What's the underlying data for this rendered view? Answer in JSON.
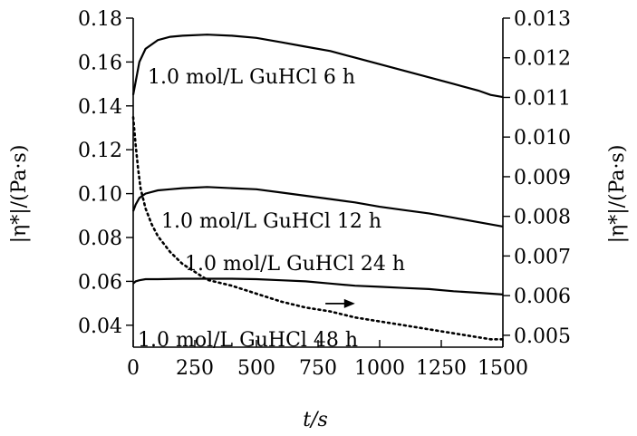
{
  "chart_data": {
    "type": "line",
    "xlabel": "t/s",
    "ylabel": "|η*|/(Pa·s)",
    "y2label": "|η*|/(Pa·s)",
    "xlim": [
      0,
      1500
    ],
    "ylim": [
      0.03,
      0.18
    ],
    "y2lim": [
      0.0047,
      0.013
    ],
    "x_ticks": [
      "0",
      "250",
      "500",
      "750",
      "1000",
      "1250",
      "1500"
    ],
    "y_ticks": [
      "0.04",
      "0.06",
      "0.08",
      "0.10",
      "0.12",
      "0.14",
      "0.16",
      "0.18"
    ],
    "y2_ticks": [
      "0.005",
      "0.006",
      "0.007",
      "0.008",
      "0.009",
      "0.010",
      "0.011",
      "0.012",
      "0.013"
    ],
    "series": [
      {
        "name": "1.0 mol/L GuHCl 6 h",
        "axis": "left",
        "style": "solid",
        "x": [
          0,
          10,
          25,
          50,
          100,
          150,
          200,
          300,
          400,
          500,
          600,
          700,
          800,
          900,
          1000,
          1100,
          1200,
          1300,
          1400,
          1450,
          1500
        ],
        "y": [
          0.145,
          0.151,
          0.16,
          0.166,
          0.17,
          0.1715,
          0.172,
          0.1725,
          0.172,
          0.171,
          0.169,
          0.167,
          0.165,
          0.162,
          0.159,
          0.156,
          0.153,
          0.15,
          0.147,
          0.145,
          0.144
        ]
      },
      {
        "name": "1.0 mol/L GuHCl 12 h",
        "axis": "left",
        "style": "solid",
        "x": [
          0,
          10,
          25,
          50,
          100,
          150,
          200,
          300,
          400,
          500,
          600,
          700,
          800,
          900,
          1000,
          1100,
          1200,
          1300,
          1400,
          1500
        ],
        "y": [
          0.092,
          0.095,
          0.098,
          0.1,
          0.1015,
          0.102,
          0.1025,
          0.103,
          0.1025,
          0.102,
          0.1005,
          0.099,
          0.0975,
          0.096,
          0.094,
          0.0925,
          0.091,
          0.089,
          0.087,
          0.085
        ]
      },
      {
        "name": "1.0 mol/L GuHCl 24 h",
        "axis": "left",
        "style": "solid",
        "x": [
          0,
          10,
          25,
          50,
          100,
          200,
          300,
          400,
          500,
          600,
          700,
          800,
          900,
          1000,
          1100,
          1200,
          1300,
          1400,
          1500
        ],
        "y": [
          0.059,
          0.06,
          0.0605,
          0.061,
          0.061,
          0.0612,
          0.0612,
          0.0612,
          0.061,
          0.0605,
          0.06,
          0.059,
          0.058,
          0.0575,
          0.057,
          0.0565,
          0.0555,
          0.0548,
          0.054
        ]
      },
      {
        "name": "1.0 mol/L GuHCl 48 h",
        "axis": "right",
        "style": "dotted",
        "x": [
          0,
          10,
          20,
          30,
          50,
          75,
          100,
          150,
          200,
          250,
          300,
          400,
          500,
          600,
          700,
          800,
          900,
          1000,
          1100,
          1200,
          1300,
          1400,
          1450,
          1500
        ],
        "y": [
          0.0105,
          0.0098,
          0.0092,
          0.0087,
          0.0082,
          0.0078,
          0.0075,
          0.0071,
          0.0068,
          0.0066,
          0.0064,
          0.00625,
          0.00605,
          0.00585,
          0.0057,
          0.0056,
          0.00545,
          0.00535,
          0.00525,
          0.00515,
          0.00505,
          0.00495,
          0.0049,
          0.0049
        ]
      }
    ],
    "annotations": [
      {
        "type": "arrow",
        "direction": "right",
        "refers_to": "1.0 mol/L GuHCl 48 h",
        "x_from": 780,
        "x_to": 900,
        "y2": 0.0058
      }
    ],
    "grid": false,
    "legend": "inline labels"
  }
}
